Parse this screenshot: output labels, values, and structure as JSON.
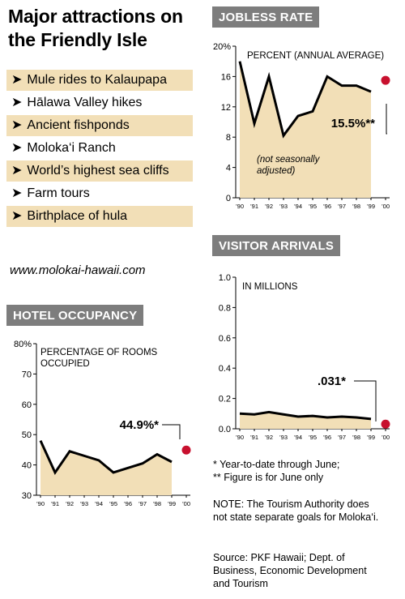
{
  "title": "Major attractions on the Friendly Isle",
  "attractions": [
    "Mule rides to Kalaupapa",
    "Hālawa Valley hikes",
    "Ancient fishponds",
    "Moloka‘i Ranch",
    "World’s highest sea cliffs",
    "Farm tours",
    "Birthplace of hula"
  ],
  "website": "www.molokai-hawaii.com",
  "colors": {
    "fill": "#f2dfb7",
    "dot": "#c8102e",
    "header": "#7d7d7d"
  },
  "x_tick_labels": [
    "’90",
    "’91",
    "’92",
    "’93",
    "’94",
    "’95",
    "’96",
    "’97",
    "’98",
    "’99",
    "’00"
  ],
  "chart_data": [
    {
      "id": "jobless",
      "type": "area",
      "title": "JOBLESS RATE",
      "subtitle": "PERCENT (ANNUAL AVERAGE)",
      "annotation": "(not seasonally adjusted)",
      "x": [
        1990,
        1991,
        1992,
        1993,
        1994,
        1995,
        1996,
        1997,
        1998,
        1999
      ],
      "values": [
        18.0,
        9.8,
        16.0,
        8.2,
        10.8,
        11.4,
        16.0,
        14.8,
        14.8,
        14.0
      ],
      "highlight": {
        "x": 2000,
        "value": 15.5,
        "label": "15.5%**"
      },
      "ylim": [
        0,
        20
      ],
      "yticks": [
        "0",
        "4",
        "8",
        "12",
        "16",
        "20%"
      ]
    },
    {
      "id": "visitors",
      "type": "area",
      "title": "VISITOR ARRIVALS",
      "subtitle": "IN MILLIONS",
      "x": [
        1990,
        1991,
        1992,
        1993,
        1994,
        1995,
        1996,
        1997,
        1998,
        1999
      ],
      "values": [
        0.1,
        0.095,
        0.11,
        0.095,
        0.08,
        0.085,
        0.075,
        0.08,
        0.075,
        0.065
      ],
      "highlight": {
        "x": 2000,
        "value": 0.031,
        "label": ".031*"
      },
      "ylim": [
        0,
        1.0
      ],
      "yticks": [
        "0.0",
        "0.2",
        "0.4",
        "0.6",
        "0.8",
        "1.0"
      ]
    },
    {
      "id": "hotel",
      "type": "area",
      "title": "HOTEL OCCUPANCY",
      "subtitle": "PERCENTAGE OF ROOMS OCCUPIED",
      "x": [
        1990,
        1991,
        1992,
        1993,
        1994,
        1995,
        1996,
        1997,
        1998,
        1999
      ],
      "values": [
        48,
        37.5,
        44.5,
        43,
        41.5,
        37.5,
        39,
        40.5,
        43.5,
        41
      ],
      "highlight": {
        "x": 2000,
        "value": 44.9,
        "label": "44.9%*"
      },
      "ylim": [
        30,
        80
      ],
      "yticks": [
        "30",
        "40",
        "50",
        "60",
        "70",
        "80%"
      ]
    }
  ],
  "footnotes": [
    "* Year-to-date through June;",
    "** Figure is for June only"
  ],
  "note": "NOTE: The Tourism Authority does not state separate goals for Moloka‘i.",
  "source": "Source: PKF Hawaii; Dept. of Business, Economic Development and Tourism"
}
